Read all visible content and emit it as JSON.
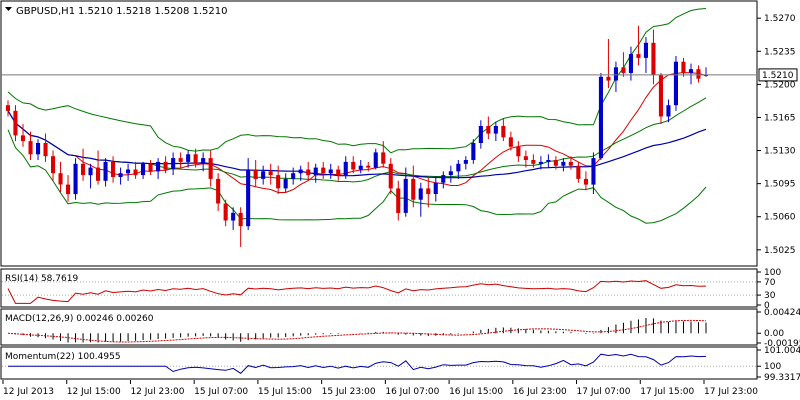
{
  "chart_data": {
    "type": "candlestick",
    "title": "GBPUSD,H1",
    "ohlc_text": "1.5210 1.5218 1.5208 1.5210",
    "current_price": "1.5210",
    "price_range": [
      1.501,
      1.5285
    ],
    "y_ticks": [
      "1.5270",
      "1.5235",
      "1.5200",
      "1.5165",
      "1.5130",
      "1.5095",
      "1.5060",
      "1.5025"
    ],
    "x_ticks": [
      "12 Jul 2013",
      "12 Jul 15:00",
      "12 Jul 23:00",
      "15 Jul 07:00",
      "15 Jul 15:00",
      "15 Jul 23:00",
      "16 Jul 07:00",
      "16 Jul 15:00",
      "16 Jul 23:00",
      "17 Jul 07:00",
      "17 Jul 15:00",
      "17 Jul 23:00"
    ],
    "colors": {
      "bull": "#0000cc",
      "bear": "#dd0000",
      "bollinger": "#007700",
      "ma_red": "#dd0000",
      "ma_green": "#007700",
      "ma_blue": "#0000aa",
      "current_line": "#777777",
      "grid_dots": "#aaaaaa"
    },
    "candles": [
      {
        "o": 1.5178,
        "h": 1.5183,
        "l": 1.5166,
        "c": 1.5172
      },
      {
        "o": 1.5172,
        "h": 1.5178,
        "l": 1.514,
        "c": 1.5146
      },
      {
        "o": 1.5146,
        "h": 1.5158,
        "l": 1.5134,
        "c": 1.514
      },
      {
        "o": 1.514,
        "h": 1.515,
        "l": 1.512,
        "c": 1.5126
      },
      {
        "o": 1.5126,
        "h": 1.5142,
        "l": 1.512,
        "c": 1.5138
      },
      {
        "o": 1.5138,
        "h": 1.5148,
        "l": 1.5118,
        "c": 1.5124
      },
      {
        "o": 1.5124,
        "h": 1.513,
        "l": 1.5098,
        "c": 1.5106
      },
      {
        "o": 1.5106,
        "h": 1.5118,
        "l": 1.5086,
        "c": 1.5094
      },
      {
        "o": 1.5094,
        "h": 1.5104,
        "l": 1.5076,
        "c": 1.5084
      },
      {
        "o": 1.5084,
        "h": 1.5122,
        "l": 1.5078,
        "c": 1.5116
      },
      {
        "o": 1.5116,
        "h": 1.5132,
        "l": 1.5098,
        "c": 1.5104
      },
      {
        "o": 1.5104,
        "h": 1.5116,
        "l": 1.509,
        "c": 1.5112
      },
      {
        "o": 1.5112,
        "h": 1.513,
        "l": 1.5094,
        "c": 1.5098
      },
      {
        "o": 1.5098,
        "h": 1.5122,
        "l": 1.5092,
        "c": 1.5118
      },
      {
        "o": 1.5118,
        "h": 1.5124,
        "l": 1.5096,
        "c": 1.5102
      },
      {
        "o": 1.5102,
        "h": 1.5112,
        "l": 1.5094,
        "c": 1.5106
      },
      {
        "o": 1.5106,
        "h": 1.5116,
        "l": 1.5098,
        "c": 1.511
      },
      {
        "o": 1.511,
        "h": 1.5118,
        "l": 1.51,
        "c": 1.5104
      },
      {
        "o": 1.5104,
        "h": 1.5118,
        "l": 1.51,
        "c": 1.5116
      },
      {
        "o": 1.5116,
        "h": 1.512,
        "l": 1.5104,
        "c": 1.5108
      },
      {
        "o": 1.5108,
        "h": 1.5122,
        "l": 1.51,
        "c": 1.5118
      },
      {
        "o": 1.5118,
        "h": 1.5124,
        "l": 1.5106,
        "c": 1.511
      },
      {
        "o": 1.511,
        "h": 1.5128,
        "l": 1.5104,
        "c": 1.5122
      },
      {
        "o": 1.5122,
        "h": 1.5128,
        "l": 1.5112,
        "c": 1.5118
      },
      {
        "o": 1.5118,
        "h": 1.513,
        "l": 1.5112,
        "c": 1.5126
      },
      {
        "o": 1.5126,
        "h": 1.5132,
        "l": 1.5112,
        "c": 1.5116
      },
      {
        "o": 1.5116,
        "h": 1.5128,
        "l": 1.5108,
        "c": 1.5122
      },
      {
        "o": 1.5122,
        "h": 1.513,
        "l": 1.5092,
        "c": 1.51
      },
      {
        "o": 1.51,
        "h": 1.5106,
        "l": 1.5066,
        "c": 1.5074
      },
      {
        "o": 1.5074,
        "h": 1.5078,
        "l": 1.505,
        "c": 1.5056
      },
      {
        "o": 1.5056,
        "h": 1.507,
        "l": 1.5046,
        "c": 1.5064
      },
      {
        "o": 1.5064,
        "h": 1.507,
        "l": 1.5028,
        "c": 1.505
      },
      {
        "o": 1.505,
        "h": 1.5122,
        "l": 1.5046,
        "c": 1.511
      },
      {
        "o": 1.511,
        "h": 1.512,
        "l": 1.5092,
        "c": 1.51
      },
      {
        "o": 1.51,
        "h": 1.5114,
        "l": 1.5094,
        "c": 1.5108
      },
      {
        "o": 1.5108,
        "h": 1.5116,
        "l": 1.5094,
        "c": 1.5104
      },
      {
        "o": 1.5104,
        "h": 1.5114,
        "l": 1.5084,
        "c": 1.509
      },
      {
        "o": 1.509,
        "h": 1.5106,
        "l": 1.5086,
        "c": 1.51
      },
      {
        "o": 1.51,
        "h": 1.5112,
        "l": 1.5094,
        "c": 1.5106
      },
      {
        "o": 1.5106,
        "h": 1.5114,
        "l": 1.5098,
        "c": 1.511
      },
      {
        "o": 1.511,
        "h": 1.5118,
        "l": 1.5098,
        "c": 1.5104
      },
      {
        "o": 1.5104,
        "h": 1.5116,
        "l": 1.5096,
        "c": 1.5112
      },
      {
        "o": 1.5112,
        "h": 1.5118,
        "l": 1.51,
        "c": 1.5106
      },
      {
        "o": 1.5106,
        "h": 1.5116,
        "l": 1.51,
        "c": 1.511
      },
      {
        "o": 1.511,
        "h": 1.5114,
        "l": 1.5098,
        "c": 1.5104
      },
      {
        "o": 1.5104,
        "h": 1.5124,
        "l": 1.51,
        "c": 1.5118
      },
      {
        "o": 1.5118,
        "h": 1.5124,
        "l": 1.5106,
        "c": 1.511
      },
      {
        "o": 1.511,
        "h": 1.512,
        "l": 1.5106,
        "c": 1.5114
      },
      {
        "o": 1.5114,
        "h": 1.5118,
        "l": 1.5108,
        "c": 1.5112
      },
      {
        "o": 1.5112,
        "h": 1.5132,
        "l": 1.511,
        "c": 1.5128
      },
      {
        "o": 1.5128,
        "h": 1.514,
        "l": 1.5112,
        "c": 1.5116
      },
      {
        "o": 1.5116,
        "h": 1.5122,
        "l": 1.5084,
        "c": 1.509
      },
      {
        "o": 1.509,
        "h": 1.5098,
        "l": 1.5056,
        "c": 1.5064
      },
      {
        "o": 1.5064,
        "h": 1.5112,
        "l": 1.506,
        "c": 1.51
      },
      {
        "o": 1.51,
        "h": 1.5114,
        "l": 1.507,
        "c": 1.5078
      },
      {
        "o": 1.5078,
        "h": 1.5096,
        "l": 1.506,
        "c": 1.509
      },
      {
        "o": 1.509,
        "h": 1.5102,
        "l": 1.507,
        "c": 1.5084
      },
      {
        "o": 1.5084,
        "h": 1.5102,
        "l": 1.5076,
        "c": 1.5096
      },
      {
        "o": 1.5096,
        "h": 1.5108,
        "l": 1.509,
        "c": 1.5104
      },
      {
        "o": 1.5104,
        "h": 1.5114,
        "l": 1.5096,
        "c": 1.5108
      },
      {
        "o": 1.5108,
        "h": 1.512,
        "l": 1.51,
        "c": 1.5116
      },
      {
        "o": 1.5116,
        "h": 1.5124,
        "l": 1.511,
        "c": 1.512
      },
      {
        "o": 1.512,
        "h": 1.5142,
        "l": 1.5116,
        "c": 1.5138
      },
      {
        "o": 1.5138,
        "h": 1.5162,
        "l": 1.5132,
        "c": 1.5156
      },
      {
        "o": 1.5156,
        "h": 1.5166,
        "l": 1.5142,
        "c": 1.5148
      },
      {
        "o": 1.5148,
        "h": 1.516,
        "l": 1.514,
        "c": 1.5156
      },
      {
        "o": 1.5156,
        "h": 1.5164,
        "l": 1.514,
        "c": 1.5144
      },
      {
        "o": 1.5144,
        "h": 1.515,
        "l": 1.513,
        "c": 1.5134
      },
      {
        "o": 1.5134,
        "h": 1.514,
        "l": 1.5118,
        "c": 1.5124
      },
      {
        "o": 1.5124,
        "h": 1.513,
        "l": 1.5112,
        "c": 1.512
      },
      {
        "o": 1.512,
        "h": 1.5126,
        "l": 1.5112,
        "c": 1.5116
      },
      {
        "o": 1.5116,
        "h": 1.5124,
        "l": 1.511,
        "c": 1.5118
      },
      {
        "o": 1.5118,
        "h": 1.5126,
        "l": 1.5112,
        "c": 1.512
      },
      {
        "o": 1.512,
        "h": 1.5124,
        "l": 1.511,
        "c": 1.5114
      },
      {
        "o": 1.5114,
        "h": 1.5122,
        "l": 1.5108,
        "c": 1.5118
      },
      {
        "o": 1.5118,
        "h": 1.5124,
        "l": 1.511,
        "c": 1.5114
      },
      {
        "o": 1.5114,
        "h": 1.5118,
        "l": 1.5096,
        "c": 1.51
      },
      {
        "o": 1.51,
        "h": 1.5108,
        "l": 1.5088,
        "c": 1.5094
      },
      {
        "o": 1.5094,
        "h": 1.5128,
        "l": 1.5084,
        "c": 1.5122
      },
      {
        "o": 1.5122,
        "h": 1.5212,
        "l": 1.512,
        "c": 1.5208
      },
      {
        "o": 1.5208,
        "h": 1.5248,
        "l": 1.5196,
        "c": 1.5204
      },
      {
        "o": 1.5204,
        "h": 1.5224,
        "l": 1.5192,
        "c": 1.5218
      },
      {
        "o": 1.5218,
        "h": 1.5234,
        "l": 1.5208,
        "c": 1.5212
      },
      {
        "o": 1.5212,
        "h": 1.524,
        "l": 1.5204,
        "c": 1.5232
      },
      {
        "o": 1.5232,
        "h": 1.5262,
        "l": 1.522,
        "c": 1.5228
      },
      {
        "o": 1.5228,
        "h": 1.525,
        "l": 1.5212,
        "c": 1.5244
      },
      {
        "o": 1.5244,
        "h": 1.5258,
        "l": 1.52,
        "c": 1.521
      },
      {
        "o": 1.521,
        "h": 1.5212,
        "l": 1.5158,
        "c": 1.5166
      },
      {
        "o": 1.5166,
        "h": 1.5184,
        "l": 1.516,
        "c": 1.5178
      },
      {
        "o": 1.5178,
        "h": 1.523,
        "l": 1.5172,
        "c": 1.5224
      },
      {
        "o": 1.5224,
        "h": 1.5228,
        "l": 1.5208,
        "c": 1.5212
      },
      {
        "o": 1.5212,
        "h": 1.5222,
        "l": 1.52,
        "c": 1.5216
      },
      {
        "o": 1.5216,
        "h": 1.522,
        "l": 1.5202,
        "c": 1.5206
      },
      {
        "o": 1.521,
        "h": 1.5218,
        "l": 1.5208,
        "c": 1.521
      }
    ],
    "indicators": {
      "rsi": {
        "label": "RSI(14) 58.7619",
        "levels": [
          "100",
          "70",
          "30",
          "0"
        ],
        "level_values": [
          100,
          70,
          30,
          0
        ]
      },
      "macd": {
        "label": "MACD(12,26,9) 0.00246 0.00260",
        "ticks": [
          "0.00424",
          "0.00",
          "-0.00195"
        ],
        "range": [
          -0.00195,
          0.00424
        ]
      },
      "momentum": {
        "label": "Momentum(22) 100.4955",
        "ticks": [
          "101.0044",
          "100",
          "99.3317"
        ],
        "range": [
          99.3317,
          101.0044
        ]
      }
    }
  }
}
